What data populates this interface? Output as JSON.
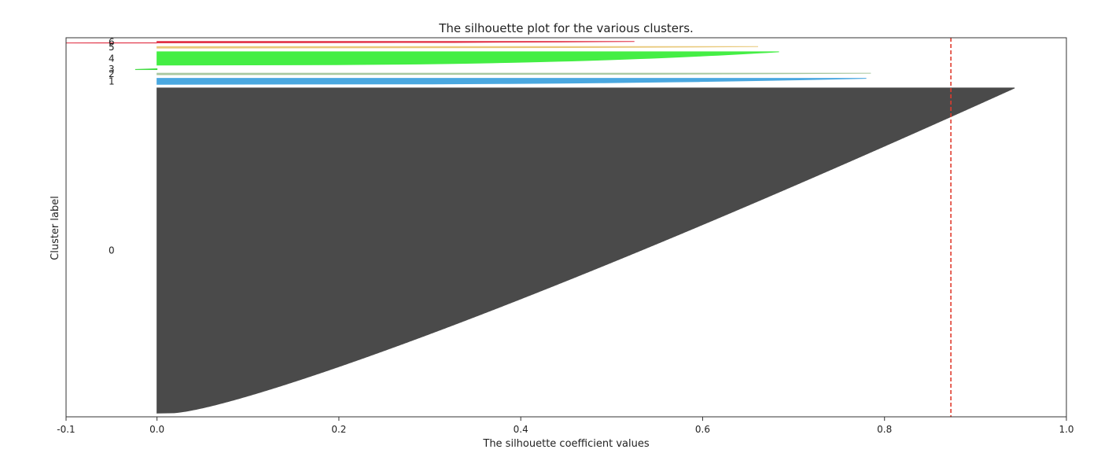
{
  "chart_data": {
    "type": "area",
    "title": "The silhouette plot for the various clusters.",
    "xlabel": "The silhouette coefficient values",
    "ylabel": "Cluster label",
    "xlim": [
      -0.1,
      1.0
    ],
    "xticks": [
      "-0.1",
      "0.0",
      "0.2",
      "0.4",
      "0.6",
      "0.8",
      "1.0"
    ],
    "grid": false,
    "legend": "none",
    "average_silhouette": 0.873,
    "average_line_color": "#e03c2e",
    "clusters": [
      {
        "label": "0",
        "color": "#4a4a4a",
        "max": 0.943,
        "min": 0.0,
        "size": 880
      },
      {
        "label": "1",
        "color": "#4aa8e0",
        "max": 0.78,
        "min": 0.0,
        "size": 16
      },
      {
        "label": "2",
        "color": "#a8c8a0",
        "max": 0.785,
        "min": 0.0,
        "size": 4
      },
      {
        "label": "3",
        "color": "#2ed82e",
        "max": 0.0,
        "min": -0.024,
        "size": 2
      },
      {
        "label": "4",
        "color": "#44ee44",
        "max": 0.684,
        "min": 0.0,
        "size": 36
      },
      {
        "label": "5",
        "color": "#e8c878",
        "max": 0.661,
        "min": 0.0,
        "size": 4
      },
      {
        "label": "6",
        "color": "#e02c40",
        "max": 0.525,
        "min": -0.1,
        "size": 4
      }
    ]
  }
}
